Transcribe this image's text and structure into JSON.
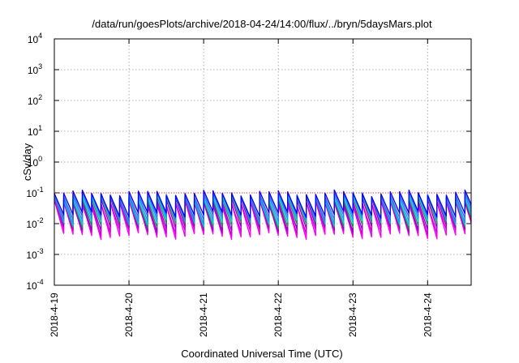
{
  "chart_data": {
    "type": "line",
    "title": "/data/run/goesPlots/archive/2018-04-24/14:00/flux/../bryn/5daysMars.plot",
    "xlabel": "Coordinated Universal Time (UTC)",
    "ylabel": "cSv/day",
    "scale": "log",
    "grid": true,
    "xlim": [
      "2018-4-19",
      "2018-4-24 14:00"
    ],
    "ylim": [
      0.0001,
      10000
    ],
    "x_ticks": [
      "2018-4-19",
      "2018-4-20",
      "2018-4-21",
      "2018-4-22",
      "2018-4-23",
      "2018-4-24"
    ],
    "y_ticks": [
      {
        "base": "10",
        "exp": "-4"
      },
      {
        "base": "10",
        "exp": "-3"
      },
      {
        "base": "10",
        "exp": "-2"
      },
      {
        "base": "10",
        "exp": "-1"
      },
      {
        "base": "10",
        "exp": "0"
      },
      {
        "base": "10",
        "exp": "1"
      },
      {
        "base": "10",
        "exp": "2"
      },
      {
        "base": "10",
        "exp": "3"
      },
      {
        "base": "10",
        "exp": "4"
      }
    ],
    "reference_line": {
      "value": 0.1,
      "color": "#ff0000"
    },
    "oscillation": {
      "period_hours": 3,
      "start_day": "2018-4-19"
    },
    "series": [
      {
        "color": "#ff00ff",
        "peak": 0.055,
        "trough": 0.0045
      },
      {
        "color": "#ff00ff",
        "peak": 0.05,
        "trough": 0.004
      },
      {
        "color": "#cc00cc",
        "peak": 0.045,
        "trough": 0.0055
      },
      {
        "color": "#9400d3",
        "peak": 0.06,
        "trough": 0.007
      },
      {
        "color": "#2e8b57",
        "peak": 0.07,
        "trough": 0.009
      },
      {
        "color": "#00ced1",
        "peak": 0.075,
        "trough": 0.011
      },
      {
        "color": "#1e90ff",
        "peak": 0.085,
        "trough": 0.013
      },
      {
        "color": "#4169e1",
        "peak": 0.09,
        "trough": 0.016
      },
      {
        "color": "#0000ff",
        "peak": 0.1,
        "trough": 0.02
      }
    ]
  }
}
